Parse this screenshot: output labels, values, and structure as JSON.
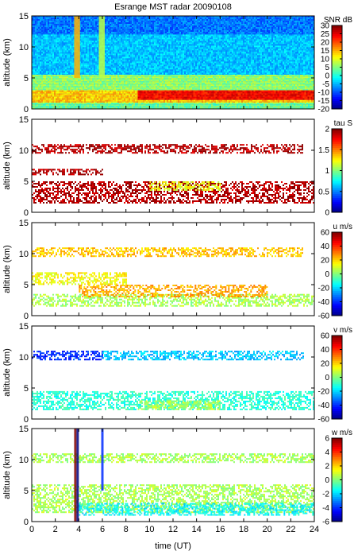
{
  "title": "Esrange MST radar 20090108",
  "x_axis": {
    "label": "time (UT)",
    "range": [
      0,
      24
    ],
    "ticks": [
      0,
      2,
      4,
      6,
      8,
      10,
      12,
      14,
      16,
      18,
      20,
      22,
      24
    ]
  },
  "chart_data": [
    {
      "type": "heatmap",
      "ylabel": "altitude (km)",
      "ylim": [
        0,
        15
      ],
      "yticks": [
        0,
        5,
        10,
        15
      ],
      "colorbar": {
        "label": "SNR dB",
        "range": [
          -20,
          30
        ],
        "ticks": [
          30,
          25,
          20,
          15,
          10,
          5,
          0,
          -5,
          -10,
          -15,
          -20
        ]
      },
      "coverage": "full",
      "layers": [
        {
          "t": [
            0,
            24
          ],
          "alt": [
            0,
            15
          ],
          "value": -8
        },
        {
          "t": [
            0,
            24
          ],
          "alt": [
            5.5,
            12
          ],
          "value": -4
        },
        {
          "t": [
            0,
            24
          ],
          "alt": [
            3,
            5.5
          ],
          "value": 6
        },
        {
          "t": [
            0,
            24
          ],
          "alt": [
            1,
            3
          ],
          "value": 14
        },
        {
          "t": [
            9,
            24
          ],
          "alt": [
            1.5,
            3
          ],
          "value": 24
        },
        {
          "t": [
            0,
            24
          ],
          "alt": [
            0,
            1
          ],
          "value": 4
        }
      ],
      "features": [
        {
          "t": [
            3.6,
            4.1
          ],
          "alt": [
            5,
            15
          ],
          "value": 15
        },
        {
          "t": [
            5.7,
            6.2
          ],
          "alt": [
            5,
            15
          ],
          "value": 8
        }
      ]
    },
    {
      "type": "heatmap",
      "ylabel": "altitude (km)",
      "ylim": [
        0,
        15
      ],
      "yticks": [
        0,
        5,
        10,
        15
      ],
      "colorbar": {
        "label": "tau S",
        "range": [
          0,
          2
        ],
        "ticks": [
          2,
          1.5,
          1,
          0.5,
          0
        ]
      },
      "coverage": "sparse",
      "layers": [
        {
          "t": [
            0,
            24
          ],
          "alt": [
            1.5,
            5
          ],
          "value": 1.9
        },
        {
          "t": [
            0,
            23
          ],
          "alt": [
            9.5,
            11
          ],
          "value": 1.9
        },
        {
          "t": [
            0,
            6
          ],
          "alt": [
            6,
            7
          ],
          "value": 1.9
        },
        {
          "t": [
            10,
            16
          ],
          "alt": [
            3.5,
            5
          ],
          "value": 1.2
        }
      ]
    },
    {
      "type": "heatmap",
      "ylabel": "altitude (km)",
      "ylim": [
        0,
        15
      ],
      "yticks": [
        0,
        5,
        10,
        15
      ],
      "colorbar": {
        "label": "u m/s",
        "range": [
          -60,
          60
        ],
        "ticks": [
          60,
          40,
          20,
          0,
          -20,
          -40,
          -60
        ]
      },
      "coverage": "sparse",
      "layers": [
        {
          "t": [
            0,
            24
          ],
          "alt": [
            1.5,
            3.5
          ],
          "value": 5
        },
        {
          "t": [
            4,
            20
          ],
          "alt": [
            3,
            5
          ],
          "value": 25
        },
        {
          "t": [
            0,
            23
          ],
          "alt": [
            9.5,
            11
          ],
          "value": 22
        },
        {
          "t": [
            0,
            8
          ],
          "alt": [
            5,
            7
          ],
          "value": 15
        }
      ]
    },
    {
      "type": "heatmap",
      "ylabel": "altitude (km)",
      "ylim": [
        0,
        15
      ],
      "yticks": [
        0,
        5,
        10,
        15
      ],
      "colorbar": {
        "label": "v m/s",
        "range": [
          -60,
          60
        ],
        "ticks": [
          60,
          40,
          20,
          0,
          -20,
          -40,
          -60
        ]
      },
      "coverage": "sparse",
      "layers": [
        {
          "t": [
            0,
            24
          ],
          "alt": [
            1.5,
            4.5
          ],
          "value": -10
        },
        {
          "t": [
            9,
            16
          ],
          "alt": [
            1.5,
            3
          ],
          "value": 5
        },
        {
          "t": [
            0,
            6
          ],
          "alt": [
            9.5,
            11
          ],
          "value": -40
        },
        {
          "t": [
            6,
            23
          ],
          "alt": [
            9.5,
            11
          ],
          "value": -22
        }
      ]
    },
    {
      "type": "heatmap",
      "ylabel": "altitude (km)",
      "ylim": [
        0,
        15
      ],
      "yticks": [
        0,
        5,
        10,
        15
      ],
      "colorbar": {
        "label": "w m/s",
        "range": [
          -6,
          6
        ],
        "ticks": [
          6,
          4,
          2,
          0,
          -2,
          -4,
          -6
        ]
      },
      "coverage": "sparse",
      "layers": [
        {
          "t": [
            0,
            24
          ],
          "alt": [
            1.5,
            6
          ],
          "value": 0.5
        },
        {
          "t": [
            0,
            24
          ],
          "alt": [
            9.5,
            11
          ],
          "value": 0.5
        },
        {
          "t": [
            4,
            24
          ],
          "alt": [
            1,
            3
          ],
          "value": -1.5
        }
      ],
      "features": [
        {
          "t": [
            3.6,
            3.8
          ],
          "alt": [
            0,
            15
          ],
          "value": 6
        },
        {
          "t": [
            3.8,
            4.0
          ],
          "alt": [
            0,
            15
          ],
          "value": -6
        },
        {
          "t": [
            5.9,
            6.1
          ],
          "alt": [
            5,
            15
          ],
          "value": -4
        }
      ]
    }
  ]
}
